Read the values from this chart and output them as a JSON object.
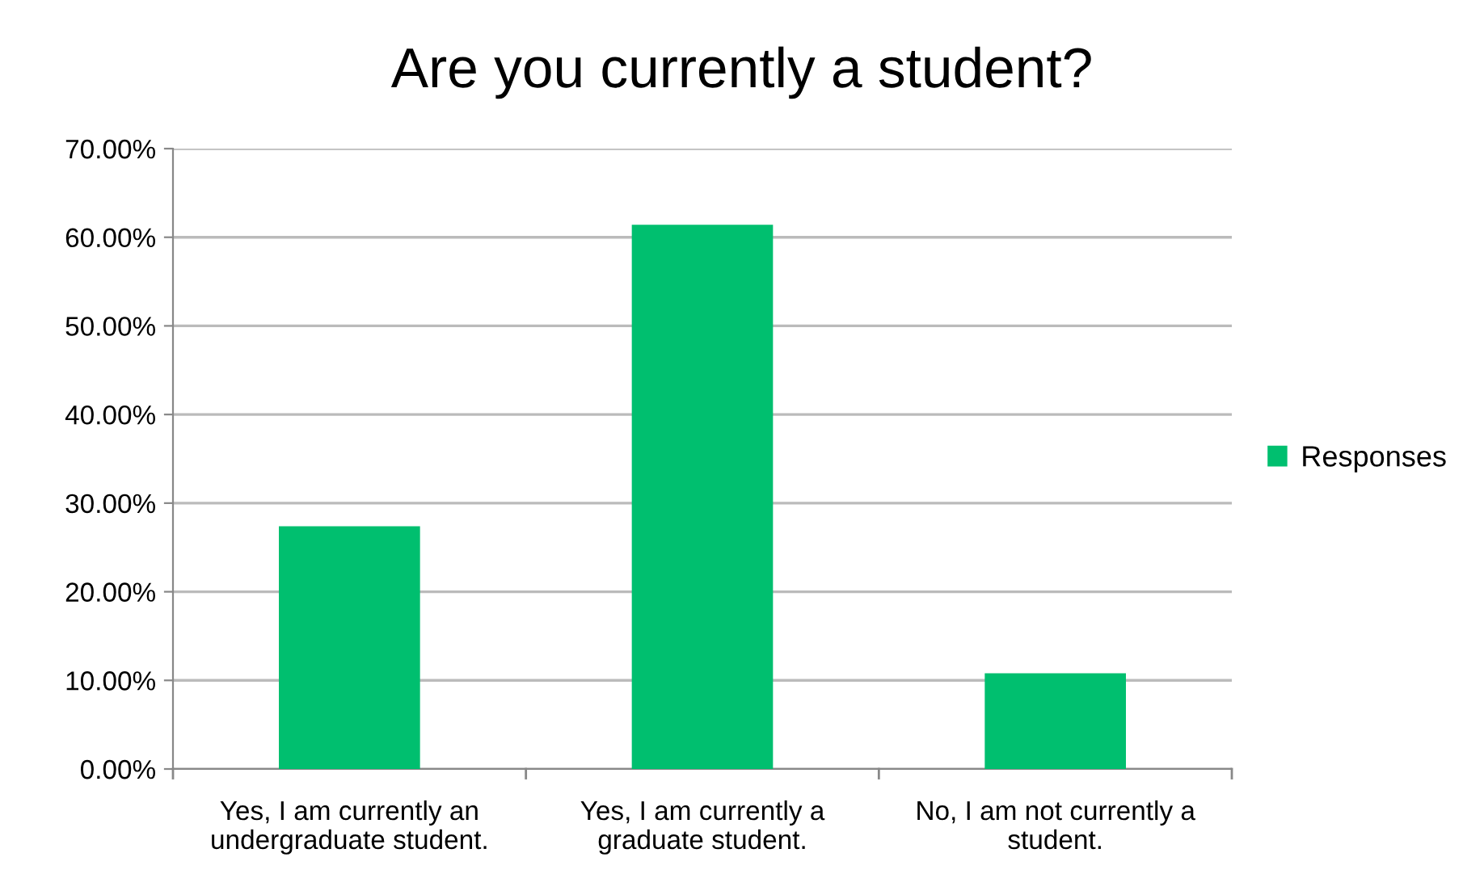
{
  "chart_data": {
    "type": "bar",
    "title": "Are you currently a student?",
    "categories": [
      "Yes, I am currently an\nundergraduate student.",
      "Yes, I am currently a\ngraduate student.",
      "No, I am not currently a\nstudent."
    ],
    "series": [
      {
        "name": "Responses",
        "color": "#00bf6f",
        "values": [
          27.4,
          61.4,
          10.8
        ]
      }
    ],
    "ylim": [
      0,
      70
    ],
    "yticks": [
      {
        "value": 0,
        "label": "0.00%"
      },
      {
        "value": 10,
        "label": "10.00%"
      },
      {
        "value": 20,
        "label": "20.00%"
      },
      {
        "value": 30,
        "label": "30.00%"
      },
      {
        "value": 40,
        "label": "40.00%"
      },
      {
        "value": 50,
        "label": "50.00%"
      },
      {
        "value": 60,
        "label": "60.00%"
      },
      {
        "value": 70,
        "label": "70.00%"
      }
    ],
    "grid": "y",
    "legend": "right"
  }
}
